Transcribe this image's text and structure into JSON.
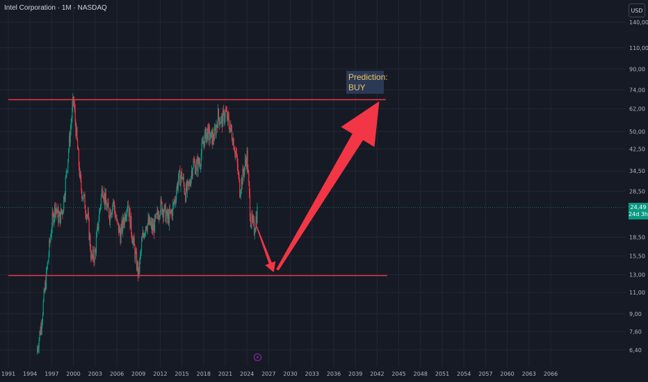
{
  "header": {
    "symbol_title": "Intel Corporation · 1M · NASDAQ",
    "currency": "USD"
  },
  "annotation": {
    "prediction_label": "Prediction:",
    "prediction_value": "BUY"
  },
  "price_tag": {
    "price": "24,49",
    "countdown": "24d 3h"
  },
  "event_marker_icon": "lightning-icon",
  "colors": {
    "background": "#161a25",
    "grid": "#232734",
    "up_candle": "#089981",
    "down_candle": "#f23645",
    "level_line": "#f23645",
    "arrow": "#f23645",
    "prediction_bg": "#2a3a56",
    "prediction_text": "#f0c15b",
    "price_tag_bg": "#089981"
  },
  "chart_data": {
    "type": "candlestick",
    "title": "Intel Corporation · 1M · NASDAQ",
    "y_scale": "log",
    "y_axis_ticks": [
      "140,00",
      "110,00",
      "90,00",
      "74,00",
      "62,00",
      "50,00",
      "42,50",
      "34,50",
      "28,50",
      "24,49",
      "18,50",
      "15,50",
      "13,00",
      "11,00",
      "9,00",
      "7,60",
      "6,40"
    ],
    "x_axis_ticks": [
      "1991",
      "1994",
      "1997",
      "2000",
      "2003",
      "2006",
      "2009",
      "2012",
      "2015",
      "2018",
      "2021",
      "2024",
      "2027",
      "2030",
      "2033",
      "2036",
      "2039",
      "2042",
      "2045",
      "2048",
      "2051",
      "2054",
      "2057",
      "2060",
      "2063",
      "2066"
    ],
    "price_series": {
      "years": [
        1995.0,
        1995.5,
        1996.0,
        1996.5,
        1997.0,
        1997.5,
        1998.0,
        1998.5,
        1999.0,
        1999.5,
        2000.0,
        2000.5,
        2001.0,
        2001.5,
        2002.0,
        2002.5,
        2003.0,
        2003.5,
        2004.0,
        2004.5,
        2005.0,
        2005.5,
        2006.0,
        2006.5,
        2007.0,
        2007.5,
        2008.0,
        2008.5,
        2009.0,
        2009.5,
        2010.0,
        2010.5,
        2011.0,
        2011.5,
        2012.0,
        2012.5,
        2013.0,
        2013.5,
        2014.0,
        2014.5,
        2015.0,
        2015.5,
        2016.0,
        2016.5,
        2017.0,
        2017.5,
        2018.0,
        2018.5,
        2019.0,
        2019.5,
        2020.0,
        2020.5,
        2021.0,
        2021.5,
        2022.0,
        2022.5,
        2023.0,
        2023.5,
        2024.0,
        2024.5,
        2025.0,
        2025.5
      ],
      "close": [
        6.5,
        8.0,
        11.0,
        15.0,
        21.0,
        25.0,
        22.0,
        24.0,
        33.0,
        48.0,
        68.0,
        45.0,
        30.0,
        26.0,
        22.0,
        15.0,
        16.0,
        22.0,
        30.0,
        25.0,
        23.0,
        26.0,
        21.0,
        19.0,
        22.0,
        26.0,
        20.0,
        16.0,
        13.0,
        18.0,
        21.0,
        21.0,
        20.0,
        22.0,
        25.0,
        24.0,
        22.0,
        23.0,
        26.0,
        32.0,
        33.0,
        28.0,
        30.0,
        37.0,
        36.0,
        38.0,
        46.0,
        50.0,
        47.0,
        48.0,
        58.0,
        55.0,
        60.0,
        54.0,
        48.0,
        40.0,
        29.0,
        34.0,
        40.0,
        22.0,
        20.0,
        24.49
      ]
    },
    "horizontal_levels": [
      {
        "price": 67.5,
        "from_year": 1991,
        "to_year": 2043.2
      },
      {
        "price": 12.9,
        "from_year": 1991,
        "to_year": 2043.4
      }
    ],
    "arrows": [
      {
        "from": {
          "year": 2025.2,
          "price": 21.0
        },
        "to": {
          "year": 2027.7,
          "price": 13.3
        }
      },
      {
        "from": {
          "year": 2028.2,
          "price": 13.6
        },
        "to": {
          "year": 2042.3,
          "price": 66.5
        }
      }
    ],
    "annotation": {
      "text": "Prediction: BUY",
      "year": 2038.6,
      "price": 82.0
    },
    "last_price": 24.49,
    "grid": true
  }
}
